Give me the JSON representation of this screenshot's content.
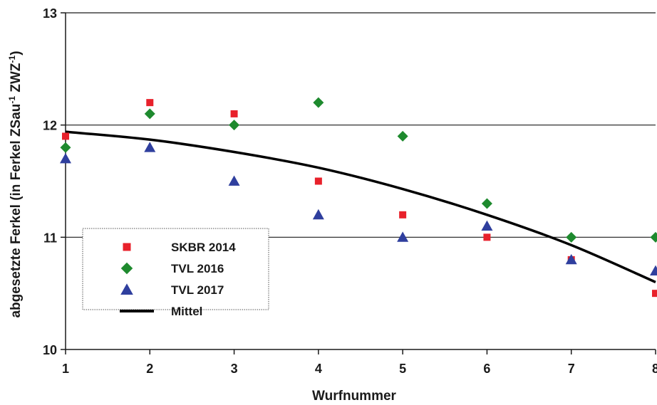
{
  "chart_data": {
    "type": "scatter",
    "xlabel": "Wurfnummer",
    "ylabel": {
      "parts": [
        "abgesetzte Ferkel (in Ferkel ZSau",
        "-1",
        " ZWZ",
        "-1",
        ")"
      ]
    },
    "x_ticks": [
      "1",
      "2",
      "3",
      "4",
      "5",
      "6",
      "7",
      "8"
    ],
    "y_ticks": [
      "10",
      "11",
      "12",
      "13"
    ],
    "xlim": [
      1,
      8
    ],
    "ylim": [
      10,
      13
    ],
    "grid": "horizontal",
    "legend_position": "bottom-left",
    "series": [
      {
        "name": "SKBR 2014",
        "marker": "square",
        "color": "#e8212b",
        "x": [
          1,
          2,
          3,
          4,
          5,
          6,
          7,
          8
        ],
        "y": [
          11.9,
          12.2,
          12.1,
          11.5,
          11.2,
          11.0,
          10.8,
          10.5
        ]
      },
      {
        "name": "TVL 2016",
        "marker": "diamond",
        "color": "#1e8a2e",
        "x": [
          1,
          2,
          3,
          4,
          5,
          6,
          7,
          8
        ],
        "y": [
          11.8,
          12.1,
          12.0,
          12.2,
          11.9,
          11.3,
          11.0,
          11.0
        ]
      },
      {
        "name": "TVL 2017",
        "marker": "triangle",
        "color": "#2f3f9e",
        "x": [
          1,
          2,
          3,
          4,
          5,
          6,
          7,
          8
        ],
        "y": [
          11.7,
          11.8,
          11.5,
          11.2,
          11.0,
          11.1,
          10.8,
          10.7
        ]
      },
      {
        "name": "Mittel",
        "marker": "line",
        "color": "#000000",
        "x": [
          1,
          2,
          3,
          4,
          5,
          6,
          7,
          8
        ],
        "y": [
          11.94,
          11.87,
          11.76,
          11.62,
          11.43,
          11.2,
          10.93,
          10.6
        ]
      }
    ]
  }
}
